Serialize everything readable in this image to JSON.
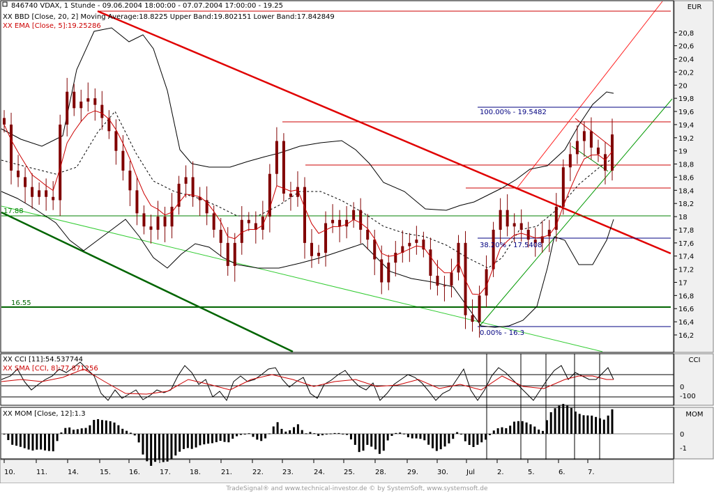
{
  "header": {
    "title": "846740  VDAX, 1 Stunde - 09.06.2004 18:00:00 - 07.07.2004 17:00:00 - 19.25",
    "bbd": "XX BBD [Close, 20, 2] Moving Average:18.8225 Upper Band:19.802151 Lower Band:17.842849",
    "ema": "XX EMA [Close, 5]:19.25286"
  },
  "currency_label": "EUR",
  "cci_panel": {
    "label1": "XX CCI [11]:54.537744",
    "label2": "XX SMA [CCI, 8]:77.871256",
    "axis_title": "CCI",
    "ticks": [
      "0",
      "-100"
    ]
  },
  "mom_panel": {
    "label": "XX MOM [Close, 12]:1.3",
    "axis_title": "MOM",
    "ticks": [
      "0",
      "-1"
    ]
  },
  "footer": {
    "credit": "TradeSignal® and www.technical-investor.de © by  SystemSoft, www.systemsoft.de"
  },
  "colors": {
    "price": "#800000",
    "ema": "#cc0000",
    "upper_trend": "#e00000",
    "channel": "#ff2020",
    "support_green": "#008000",
    "dark_green": "#006400",
    "light_green": "#33cc33",
    "fib": "#000080"
  },
  "chart_data": {
    "type": "candlestick",
    "title": "846740  VDAX, 1 Stunde",
    "date_range": "09.06.2004 18:00:00 - 07.07.2004 17:00:00",
    "last_close": 19.25,
    "y_ticks": [
      16.2,
      16.4,
      16.6,
      16.8,
      17,
      17.2,
      17.4,
      17.6,
      17.8,
      18,
      18.2,
      18.4,
      18.6,
      18.8,
      19,
      19.2,
      19.4,
      19.6,
      19.8,
      20,
      20.2,
      20.4,
      20.6,
      20.8
    ],
    "y_tick_labels": [
      "16,2",
      "16,4",
      "16,6",
      "16,8",
      "17",
      "17,2",
      "17,4",
      "17,6",
      "17,8",
      "18",
      "18,2",
      "18,4",
      "18,6",
      "18,8",
      "19",
      "19,2",
      "19,4",
      "19,6",
      "19,8",
      "20",
      "20,2",
      "20,4",
      "20,6",
      "20,8"
    ],
    "ylim": [
      16.05,
      21.05
    ],
    "x_labels": [
      "10.",
      "11.",
      "14.",
      "15.",
      "16.",
      "17.",
      "18.",
      "21.",
      "22.",
      "23.",
      "24.",
      "25.",
      "28.",
      "29.",
      "30.",
      "Jul",
      "2.",
      "5.",
      "6.",
      "7."
    ],
    "closes": [
      19.4,
      18.7,
      18.6,
      18.45,
      18.3,
      18.4,
      18.3,
      18.25,
      19.4,
      19.9,
      19.65,
      19.75,
      19.8,
      19.7,
      19.5,
      19.3,
      19,
      18.7,
      18.4,
      18.05,
      17.85,
      17.8,
      18.0,
      17.85,
      18.15,
      18.5,
      18.6,
      18.3,
      18.25,
      18.05,
      17.8,
      17.6,
      17.25,
      17.6,
      17.95,
      17.9,
      17.8,
      18.0,
      18.65,
      19.15,
      18.35,
      18.3,
      18.45,
      17.6,
      17.4,
      17.45,
      17.9,
      17.95,
      17.85,
      17.95,
      18.1,
      17.8,
      17.65,
      17.35,
      17.0,
      17.3,
      17.45,
      17.55,
      17.6,
      17.65,
      17.5,
      17.1,
      16.95,
      16.95,
      17.15,
      17.6,
      16.5,
      16.4,
      16.8,
      17.2,
      17.8,
      18.1,
      17.85,
      17.9,
      17.8,
      17.65,
      17.6,
      17.7,
      17.8,
      18.15,
      18.75,
      18.95,
      19.15,
      19.3,
      19.05,
      18.95,
      18.7,
      19.25
    ],
    "overlays": [
      {
        "name": "Moving Average (20)",
        "last": 18.8225
      },
      {
        "name": "Upper Band",
        "last": 19.802151
      },
      {
        "name": "Lower Band",
        "last": 17.842849
      },
      {
        "name": "EMA (5)",
        "last": 19.25286
      }
    ],
    "horizontal_levels": [
      {
        "label": "17.88",
        "value": 17.88
      },
      {
        "label": "16.55",
        "value": 16.55
      }
    ],
    "fibonacci": [
      {
        "label": "100.00% - 19.5482",
        "value": 19.5482
      },
      {
        "label": "38.20% - 17.5408",
        "value": 17.5408
      },
      {
        "label": "0.00% - 16.3",
        "value": 16.3
      }
    ],
    "resistance_levels": [
      19.33,
      18.65,
      18.28
    ],
    "cci": {
      "last": 54.537744,
      "sma8": 77.871256,
      "levels": [
        100,
        0,
        -100
      ]
    },
    "momentum": {
      "last": 1.3
    },
    "grid": false
  }
}
